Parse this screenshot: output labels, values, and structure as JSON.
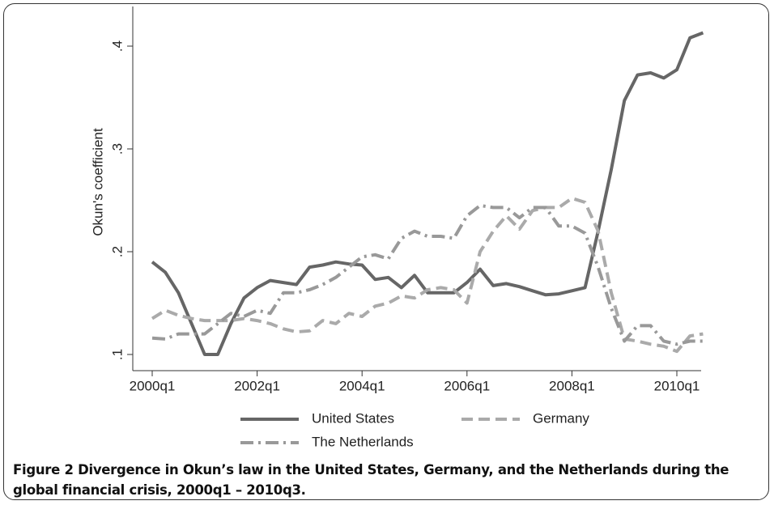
{
  "chart_data": {
    "type": "line",
    "y_label": "Okun's coefficient",
    "caption": "Figure 2 Divergence in Okun’s law in the United States, Germany, and the Netherlands during the global financial crisis, 2000q1 – 2010q3.",
    "categories": [
      "2000q1",
      null,
      null,
      null,
      null,
      null,
      null,
      null,
      "2002q1",
      null,
      null,
      null,
      null,
      null,
      null,
      null,
      "2004q1",
      null,
      null,
      null,
      null,
      null,
      null,
      null,
      "2006q1",
      null,
      null,
      null,
      null,
      null,
      null,
      null,
      "2008q1",
      null,
      null,
      null,
      null,
      null,
      null,
      null,
      "2010q1",
      null,
      null
    ],
    "ylim": [
      0.1,
      0.4
    ],
    "yticks": [
      {
        "value": 0.1,
        "label": ".1"
      },
      {
        "value": 0.2,
        "label": ".2"
      },
      {
        "value": 0.3,
        "label": ".3"
      },
      {
        "value": 0.4,
        "label": ".4"
      }
    ],
    "series": [
      {
        "name": "United States",
        "color": "#666666",
        "values": [
          0.19,
          0.18,
          0.16,
          0.13,
          0.1,
          0.1,
          0.13,
          0.155,
          0.165,
          0.172,
          0.17,
          0.168,
          0.185,
          0.187,
          0.19,
          0.188,
          0.187,
          0.173,
          0.175,
          0.165,
          0.177,
          0.16,
          0.16,
          0.16,
          0.17,
          0.183,
          0.167,
          0.169,
          0.166,
          0.162,
          0.158,
          0.159,
          0.162,
          0.165,
          0.22,
          0.28,
          0.347,
          0.372,
          0.374,
          0.369,
          0.377,
          0.408,
          0.413
        ]
      },
      {
        "name": "Germany",
        "color": "#aaaaaa",
        "values": [
          0.135,
          0.143,
          0.138,
          0.135,
          0.133,
          0.133,
          0.133,
          0.135,
          0.133,
          0.13,
          0.125,
          0.122,
          0.123,
          0.133,
          0.13,
          0.14,
          0.137,
          0.147,
          0.15,
          0.157,
          0.155,
          0.163,
          0.165,
          0.163,
          0.15,
          0.2,
          0.22,
          0.235,
          0.222,
          0.24,
          0.243,
          0.243,
          0.252,
          0.248,
          0.22,
          0.16,
          0.115,
          0.113,
          0.11,
          0.108,
          0.103,
          0.118,
          0.12
        ]
      },
      {
        "name": "The Netherlands",
        "color": "#999999",
        "values": [
          0.116,
          0.115,
          0.12,
          0.12,
          0.12,
          0.13,
          0.14,
          0.137,
          0.143,
          0.14,
          0.16,
          0.16,
          0.163,
          0.168,
          0.175,
          0.185,
          0.195,
          0.197,
          0.193,
          0.213,
          0.22,
          0.215,
          0.215,
          0.213,
          0.235,
          0.245,
          0.243,
          0.243,
          0.233,
          0.243,
          0.243,
          0.225,
          0.225,
          0.218,
          0.185,
          0.145,
          0.113,
          0.128,
          0.128,
          0.113,
          0.11,
          0.113,
          0.113
        ]
      }
    ]
  }
}
